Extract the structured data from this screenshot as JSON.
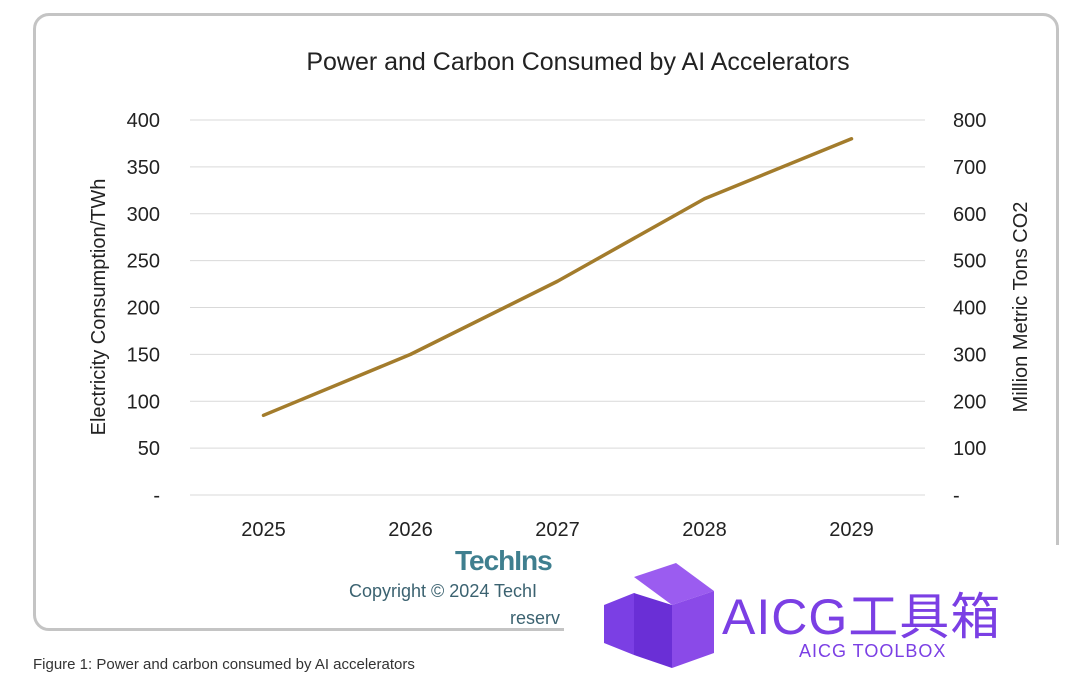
{
  "chart_data": {
    "type": "line",
    "title": "Power and Carbon Consumed by AI Accelerators",
    "categories": [
      "2025",
      "2026",
      "2027",
      "2028",
      "2029"
    ],
    "series": [
      {
        "values": [
          85,
          150,
          228,
          316,
          380
        ],
        "color": "#a37c2c"
      }
    ],
    "ylabel": "Electricity Consumption/TWh",
    "y2label": "Million Metric Tons CO2",
    "ylim": [
      0,
      400
    ],
    "y2lim": [
      0,
      800
    ],
    "yticks": [
      "-",
      "50",
      "100",
      "150",
      "200",
      "250",
      "300",
      "350",
      "400"
    ],
    "y2ticks": [
      "-",
      "100",
      "200",
      "300",
      "400",
      "500",
      "600",
      "700",
      "800"
    ],
    "grid": true,
    "legend": "none"
  },
  "source": {
    "logo_text": "TechIns",
    "copyright_line1": "Copyright © 2024 TechI",
    "copyright_line2": "reserv"
  },
  "caption": "Figure 1: Power and carbon consumed by AI accelerators",
  "watermark": {
    "title": "AICG工具箱",
    "subtitle": "AICG TOOLBOX",
    "color": "#7b3fe4"
  }
}
